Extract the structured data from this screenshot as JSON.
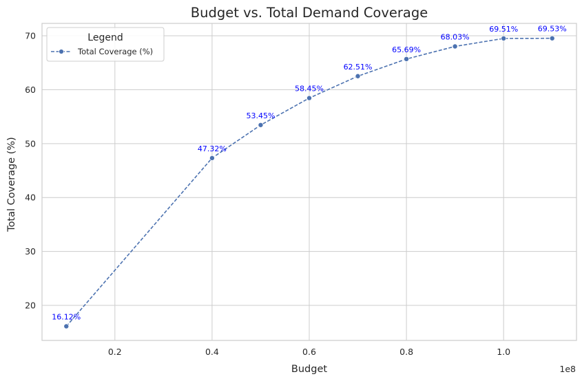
{
  "chart_data": {
    "type": "line",
    "title": "Budget vs. Total Demand Coverage",
    "xlabel": "Budget",
    "ylabel": "Total Coverage (%)",
    "x_offset_label": "1e8",
    "xlim": [
      0.05,
      1.15
    ],
    "ylim": [
      13.5,
      72.3
    ],
    "x_ticks": [
      0.2,
      0.4,
      0.6,
      0.8,
      1.0
    ],
    "x_tick_labels": [
      "0.2",
      "0.4",
      "0.6",
      "0.8",
      "1.0"
    ],
    "y_ticks": [
      20,
      30,
      40,
      50,
      60,
      70
    ],
    "y_tick_labels": [
      "20",
      "30",
      "40",
      "50",
      "60",
      "70"
    ],
    "grid": true,
    "legend": {
      "title": "Legend",
      "placement": "top-left"
    },
    "series": [
      {
        "name": "Total Coverage (%)",
        "color": "#4c72b0",
        "line_style": "dashed",
        "marker": "circle",
        "x": [
          0.1,
          0.4,
          0.5,
          0.6,
          0.7,
          0.8,
          0.9,
          1.0,
          1.1
        ],
        "values": [
          16.12,
          47.32,
          53.45,
          58.45,
          62.51,
          65.69,
          68.03,
          69.51,
          69.53
        ],
        "data_labels": [
          "16.12%",
          "47.32%",
          "53.45%",
          "58.45%",
          "62.51%",
          "65.69%",
          "68.03%",
          "69.51%",
          "69.53%"
        ],
        "data_label_color": "#0000ff"
      }
    ]
  }
}
